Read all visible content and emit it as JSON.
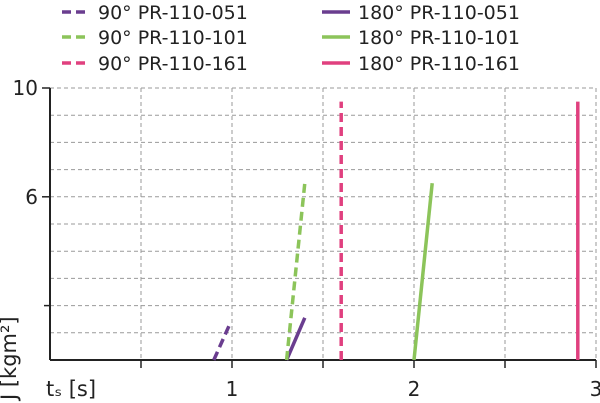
{
  "chart_data": {
    "type": "line",
    "title": "",
    "xlabel": "tₛ [s]",
    "ylabel": "J [kgm²]",
    "xlim": [
      0,
      3
    ],
    "ylim": [
      0,
      10
    ],
    "x_ticks": [
      "1",
      "2",
      "3"
    ],
    "y_ticks": [
      "6",
      "10"
    ],
    "grid": true,
    "legend_position": "top",
    "series": [
      {
        "name": "90° PR-110-051",
        "style": "dashed",
        "color": "#6a3d8f",
        "x": [
          0.9,
          0.99
        ],
        "y": [
          0,
          1.35
        ]
      },
      {
        "name": "180° PR-110-051",
        "style": "solid",
        "color": "#6a3d8f",
        "x": [
          1.3,
          1.4
        ],
        "y": [
          0,
          1.55
        ]
      },
      {
        "name": "90° PR-110-101",
        "style": "dashed",
        "color": "#8cc45a",
        "x": [
          1.3,
          1.4
        ],
        "y": [
          0,
          6.5
        ]
      },
      {
        "name": "180° PR-110-101",
        "style": "solid",
        "color": "#8cc45a",
        "x": [
          2.0,
          2.1
        ],
        "y": [
          0,
          6.5
        ]
      },
      {
        "name": "90° PR-110-161",
        "style": "dashed",
        "color": "#e0407f",
        "x": [
          1.6,
          1.6
        ],
        "y": [
          0,
          9.5
        ]
      },
      {
        "name": "180° PR-110-161",
        "style": "solid",
        "color": "#e0407f",
        "x": [
          2.9,
          2.9
        ],
        "y": [
          0,
          9.5
        ]
      }
    ]
  }
}
